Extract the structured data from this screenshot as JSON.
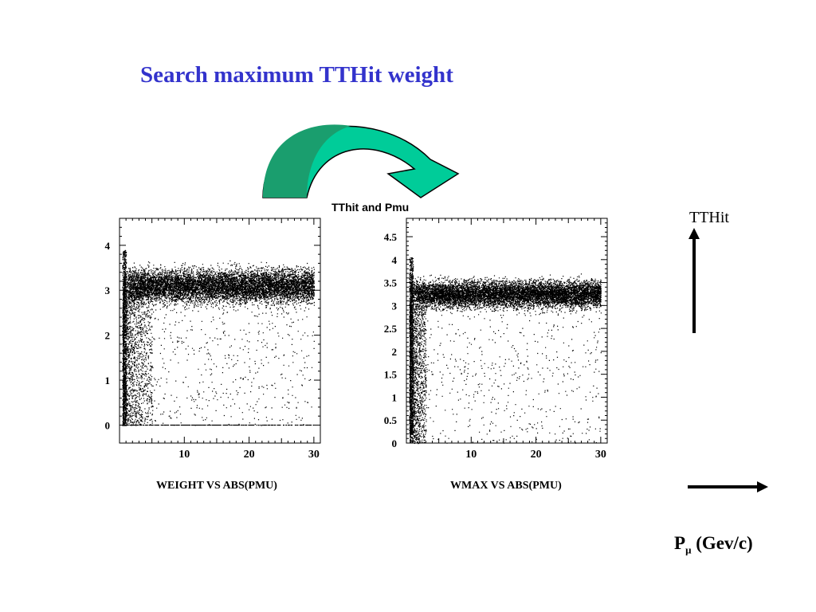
{
  "slide": {
    "title": "Search maximum TTHit weight",
    "center_label": "TThit and Pmu",
    "axis_label_vertical": "TTHit",
    "axis_label_horizontal": {
      "symbol": "P",
      "subscript": "μ",
      "units": "(Gev/c)"
    },
    "title_color": "#3333cc",
    "curved_arrow_color": "#00cc99",
    "curved_arrow_dark": "#1a9e6e"
  },
  "chart_data": [
    {
      "type": "scatter",
      "title": "WEIGHT  VS  ABS(PMU)",
      "xlabel": "",
      "ylabel": "",
      "xlim": [
        0,
        31
      ],
      "ylim": [
        -0.4,
        4.6
      ],
      "xticks": [
        10,
        20,
        30
      ],
      "yticks": [
        0,
        1,
        2,
        3,
        4
      ],
      "ytick_labels": [
        "0",
        "1",
        "2",
        "3",
        "4"
      ],
      "band": {
        "x_range": [
          0.5,
          30
        ],
        "y_center": 3.1,
        "y_halfwidth": 0.45
      },
      "low_p_spread": {
        "x_range": [
          0.5,
          5
        ],
        "y_range": [
          0,
          3
        ]
      },
      "baseline_y": 0
    },
    {
      "type": "scatter",
      "title": "WMAX  VS  ABS(PMU)",
      "xlabel": "",
      "ylabel": "",
      "xlim": [
        0,
        31
      ],
      "ylim": [
        0,
        4.9
      ],
      "xticks": [
        10,
        20,
        30
      ],
      "yticks": [
        0,
        0.5,
        1,
        1.5,
        2,
        2.5,
        3,
        3.5,
        4,
        4.5
      ],
      "ytick_labels": [
        "0",
        "0.5",
        "1",
        "1.5",
        "2",
        "2.5",
        "3",
        "3.5",
        "4",
        "4.5"
      ],
      "band": {
        "x_range": [
          0.5,
          30
        ],
        "y_center": 3.25,
        "y_halfwidth": 0.35
      },
      "low_p_spread": {
        "x_range": [
          0.5,
          3
        ],
        "y_range": [
          0,
          3
        ]
      },
      "baseline_y": null
    }
  ]
}
